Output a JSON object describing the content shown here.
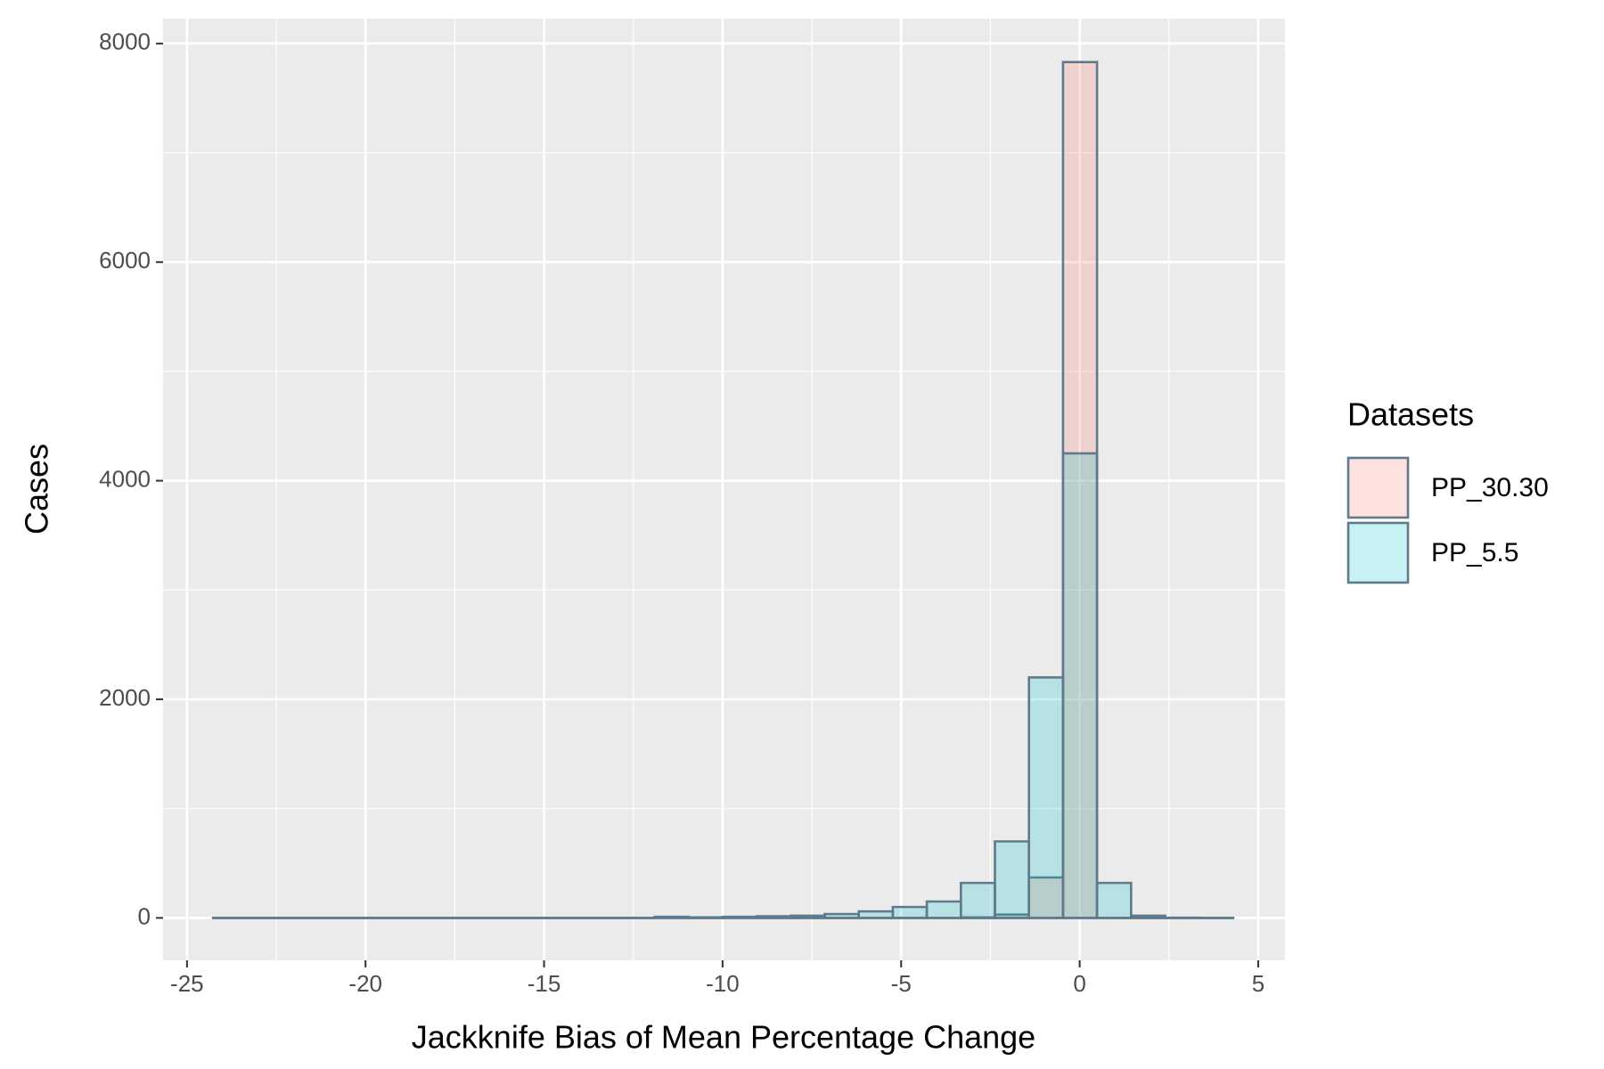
{
  "chart_data": {
    "type": "histogram",
    "x_label": "Jackknife Bias of Mean Percentage Change",
    "y_label": "Cases",
    "legend_title": "Datasets",
    "bins": [
      -24.3,
      -23.3467,
      -22.3933,
      -21.44,
      -20.4867,
      -19.5333,
      -18.58,
      -17.6267,
      -16.6733,
      -15.72,
      -14.7667,
      -13.8133,
      -12.86,
      -11.9067,
      -10.9533,
      -10.0,
      -9.0467,
      -8.0933,
      -7.14,
      -6.1867,
      -5.2333,
      -4.28,
      -3.3267,
      -2.3733,
      -1.42,
      -0.4667,
      0.4867,
      1.44,
      2.3933,
      3.3467,
      4.3
    ],
    "series": [
      {
        "name": "PP_30.30",
        "color": "#F8766D",
        "values": [
          0,
          0,
          0,
          0,
          0,
          0,
          0,
          0,
          0,
          0,
          0,
          0,
          0,
          0,
          0,
          0,
          0,
          0,
          0,
          0,
          0,
          0,
          5,
          30,
          370,
          7830,
          0,
          0,
          0,
          0
        ]
      },
      {
        "name": "PP_5.5",
        "color": "#00BFC4",
        "values": [
          0,
          0,
          0,
          0,
          0,
          0,
          0,
          0,
          0,
          0,
          0,
          0,
          0,
          10,
          5,
          10,
          15,
          20,
          35,
          60,
          100,
          150,
          320,
          700,
          2200,
          4250,
          320,
          20,
          2,
          1
        ]
      }
    ],
    "outline_color": "#5F7A8A",
    "alpha": 0.22,
    "xlim": [
      -25.67,
      5.75
    ],
    "xticks": [
      -25,
      -20,
      -15,
      -10,
      -5,
      0,
      5
    ],
    "ylim": [
      -388,
      8227
    ],
    "yticks": [
      0,
      2000,
      4000,
      6000,
      8000
    ],
    "grid": true,
    "legend": "right"
  }
}
